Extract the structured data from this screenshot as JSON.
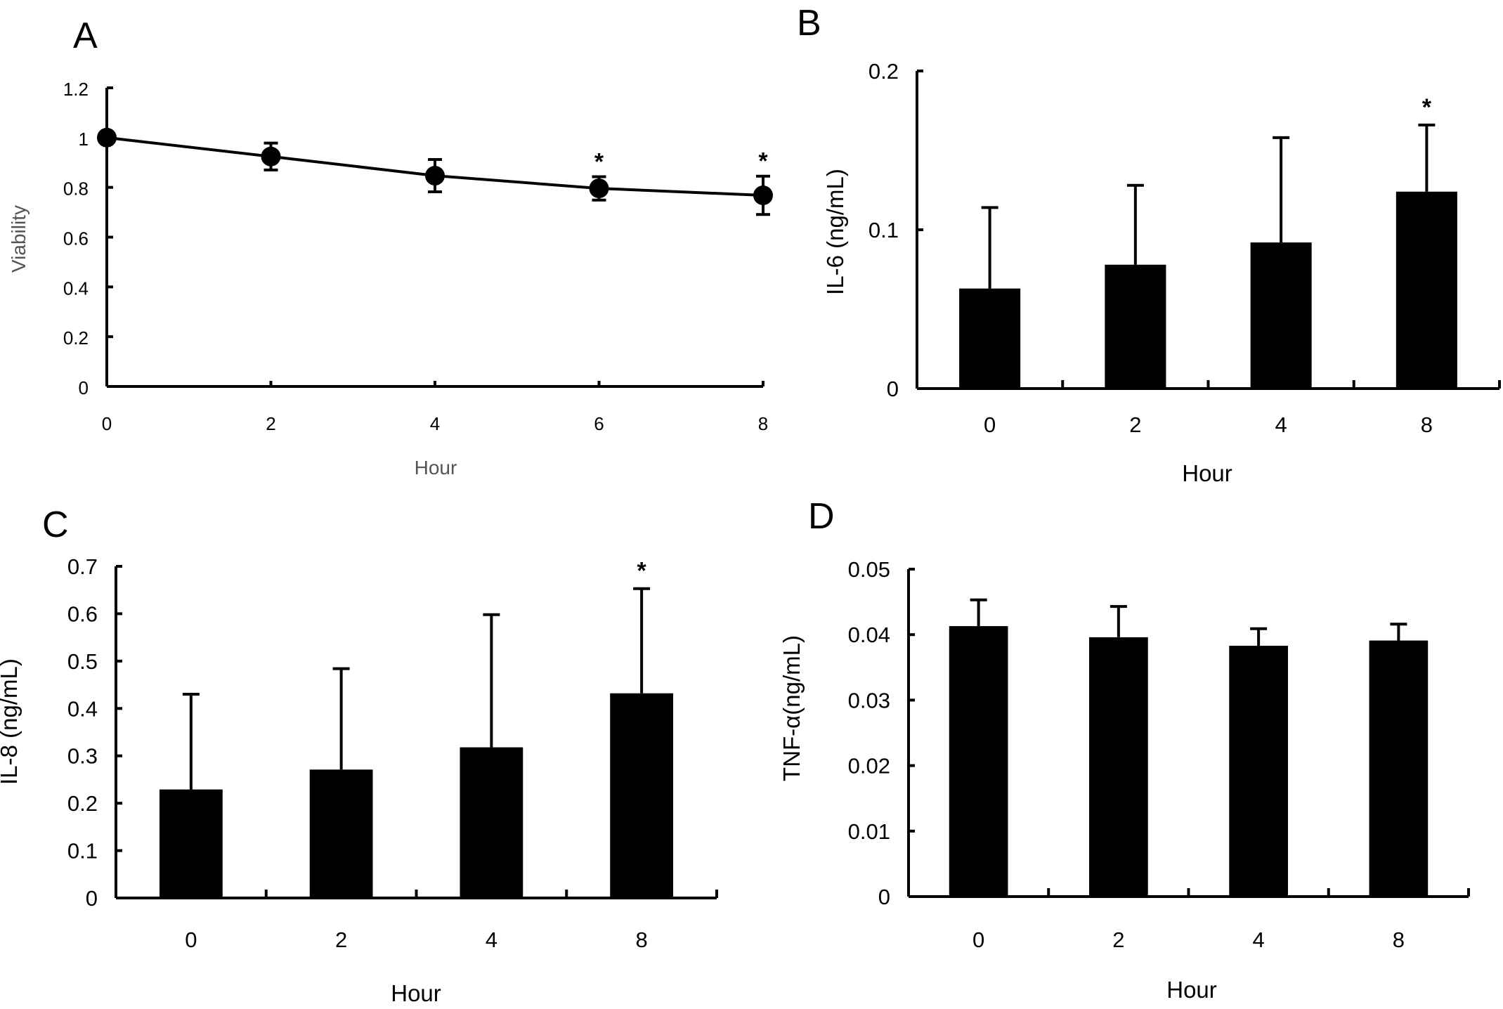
{
  "chart_data": [
    {
      "panel": "A",
      "type": "line",
      "title": "",
      "xlabel": "Hour",
      "ylabel": "Viability",
      "x": [
        0,
        2,
        4,
        6,
        8
      ],
      "x_tick_labels": [
        "0",
        "2",
        "4",
        "6",
        "8"
      ],
      "xlim": [
        0,
        8
      ],
      "ylim": [
        0,
        1.2
      ],
      "y_ticks": [
        0,
        0.2,
        0.4,
        0.6,
        0.8,
        1,
        1.2
      ],
      "y_tick_labels": [
        "0",
        "0.2",
        "0.4",
        "0.6",
        "0.8",
        "1",
        "1.2"
      ],
      "series": [
        {
          "name": "Viability",
          "values": [
            1.0,
            0.924,
            0.847,
            0.796,
            0.768
          ],
          "error": [
            0,
            0.054,
            0.065,
            0.047,
            0.077
          ],
          "significant": [
            false,
            false,
            false,
            true,
            true
          ]
        }
      ],
      "significance_marker": "*",
      "grid": false,
      "legend": "none"
    },
    {
      "panel": "B",
      "type": "bar",
      "title": "",
      "xlabel": "Hour",
      "ylabel": "IL-6 (ng/mL)",
      "categories": [
        "0",
        "2",
        "4",
        "8"
      ],
      "values": [
        0.063,
        0.078,
        0.092,
        0.124
      ],
      "error_upper": [
        0.114,
        0.128,
        0.158,
        0.166
      ],
      "significant": [
        false,
        false,
        false,
        true
      ],
      "ylim": [
        0,
        0.2
      ],
      "y_ticks": [
        0,
        0.1,
        0.2
      ],
      "y_tick_labels": [
        "0",
        "0.1",
        "0.2"
      ],
      "significance_marker": "*",
      "grid": false,
      "legend": "none"
    },
    {
      "panel": "C",
      "type": "bar",
      "title": "",
      "xlabel": "Hour",
      "ylabel": "IL-8 (ng/mL)",
      "categories": [
        "0",
        "2",
        "4",
        "8"
      ],
      "values": [
        0.229,
        0.271,
        0.318,
        0.432
      ],
      "error_upper": [
        0.43,
        0.484,
        0.598,
        0.653
      ],
      "significant": [
        false,
        false,
        false,
        true
      ],
      "ylim": [
        0,
        0.7
      ],
      "y_ticks": [
        0,
        0.1,
        0.2,
        0.3,
        0.4,
        0.5,
        0.6,
        0.7
      ],
      "y_tick_labels": [
        "0",
        "0.1",
        "0.2",
        "0.3",
        "0.4",
        "0.5",
        "0.6",
        "0.7"
      ],
      "significance_marker": "*",
      "grid": false,
      "legend": "none"
    },
    {
      "panel": "D",
      "type": "bar",
      "title": "",
      "xlabel": "Hour",
      "ylabel": "TNF-α(ng/mL)",
      "categories": [
        "0",
        "2",
        "4",
        "8"
      ],
      "values": [
        0.0413,
        0.0396,
        0.0383,
        0.0391
      ],
      "error_upper": [
        0.0453,
        0.0443,
        0.0409,
        0.0416
      ],
      "significant": [
        false,
        false,
        false,
        false
      ],
      "ylim": [
        0,
        0.05
      ],
      "y_ticks": [
        0,
        0.01,
        0.02,
        0.03,
        0.04,
        0.05
      ],
      "y_tick_labels": [
        "0",
        "0.01",
        "0.02",
        "0.03",
        "0.04",
        "0.05"
      ],
      "significance_marker": "*",
      "grid": false,
      "legend": "none"
    }
  ]
}
